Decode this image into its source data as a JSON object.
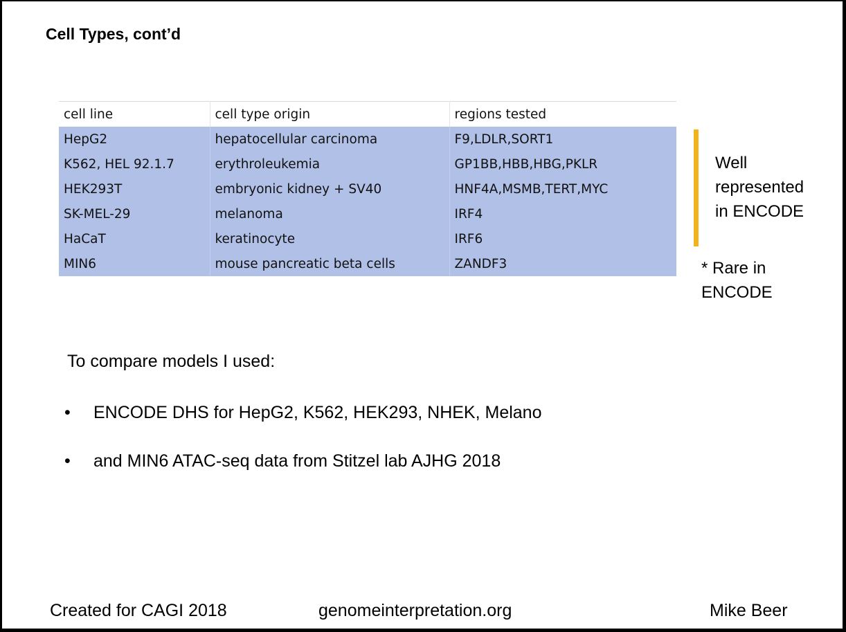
{
  "slide": {
    "title": "Cell Types, cont’d",
    "table": {
      "headers": [
        "cell line",
        "cell type origin",
        "regions tested"
      ],
      "rows": [
        [
          "HepG2",
          "hepatocellular carcinoma",
          "F9,LDLR,SORT1"
        ],
        [
          "K562, HEL 92.1.7",
          "erythroleukemia",
          "GP1BB,HBB,HBG,PKLR"
        ],
        [
          "HEK293T",
          "embryonic kidney + SV40",
          "HNF4A,MSMB,TERT,MYC"
        ],
        [
          "SK-MEL-29",
          "melanoma",
          "IRF4"
        ],
        [
          "HaCaT",
          "keratinocyte",
          "IRF6"
        ],
        [
          "MIN6",
          "mouse pancreatic beta cells",
          "ZANDF3"
        ]
      ]
    },
    "side_notes": {
      "well_line1": "Well",
      "well_line2": "represented",
      "well_line3": "in ENCODE",
      "rare_line1": "* Rare in",
      "rare_line2": "ENCODE",
      "bar_color": "#f2b41c"
    },
    "intro": "To compare models I used:",
    "bullets": [
      "ENCODE DHS for HepG2, K562, HEK293, NHEK, Melano",
      "and MIN6 ATAC-seq data from Stitzel lab AJHG 2018"
    ],
    "bullet_symbol": "•",
    "footer": {
      "left": "Created for CAGI 2018",
      "center": "genomeinterpretation.org",
      "right": "Mike Beer"
    },
    "colors": {
      "table_highlight": "#b1c0e7",
      "background": "#ffffff"
    }
  }
}
